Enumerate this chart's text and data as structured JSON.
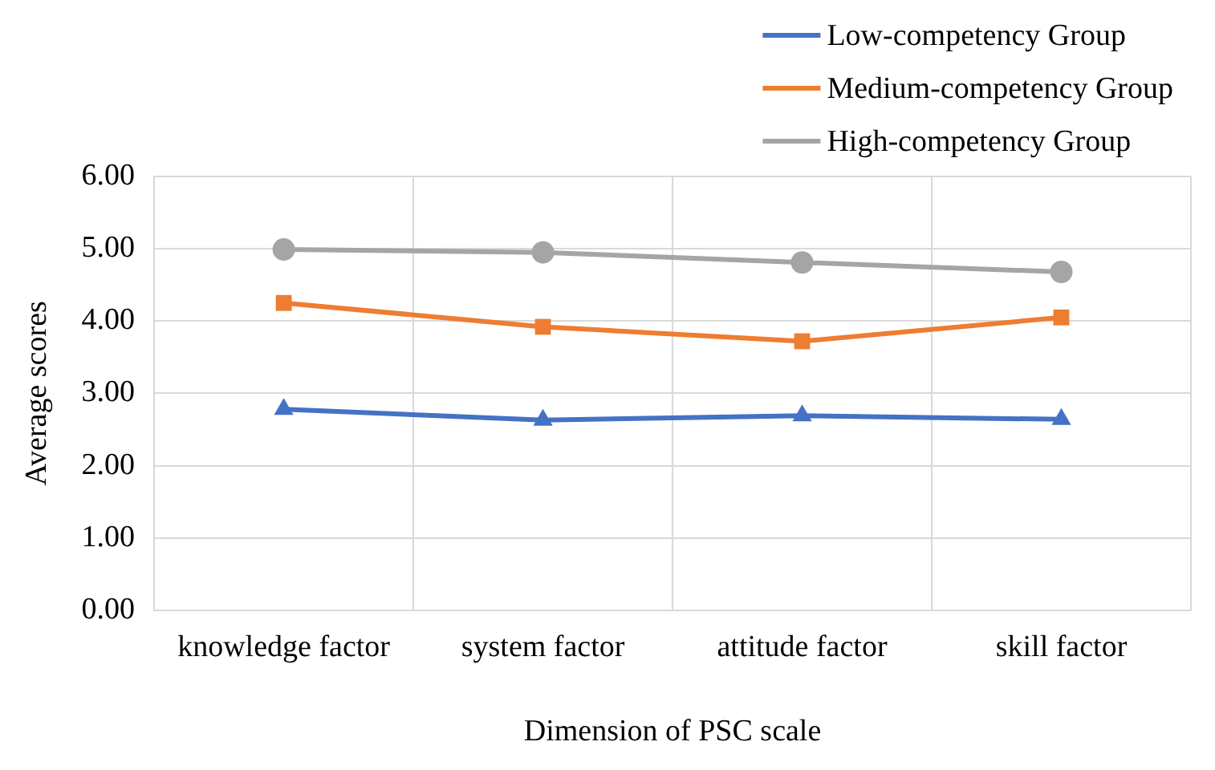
{
  "chart_data": {
    "type": "line",
    "xlabel": "Dimension of PSC scale",
    "ylabel": "Average scores",
    "categories": [
      "knowledge factor",
      "system factor",
      "attitude factor",
      "skill factor"
    ],
    "series": [
      {
        "name": "Low-competency Group",
        "color": "#4472c4",
        "marker": "triangle",
        "values": [
          2.78,
          2.63,
          2.69,
          2.64
        ]
      },
      {
        "name": "Medium-competency Group",
        "color": "#ed7d31",
        "marker": "square",
        "values": [
          4.25,
          3.92,
          3.72,
          4.05
        ]
      },
      {
        "name": "High-competency Group",
        "color": "#a5a5a5",
        "marker": "circle",
        "values": [
          4.99,
          4.95,
          4.81,
          4.68
        ]
      }
    ],
    "ylim": [
      0,
      6
    ],
    "yticks": [
      {
        "value": 0,
        "label": "0.00"
      },
      {
        "value": 1,
        "label": "1.00"
      },
      {
        "value": 2,
        "label": "2.00"
      },
      {
        "value": 3,
        "label": "3.00"
      },
      {
        "value": 4,
        "label": "4.00"
      },
      {
        "value": 5,
        "label": "5.00"
      },
      {
        "value": 6,
        "label": "6.00"
      }
    ],
    "grid": true,
    "legend": "top right"
  }
}
